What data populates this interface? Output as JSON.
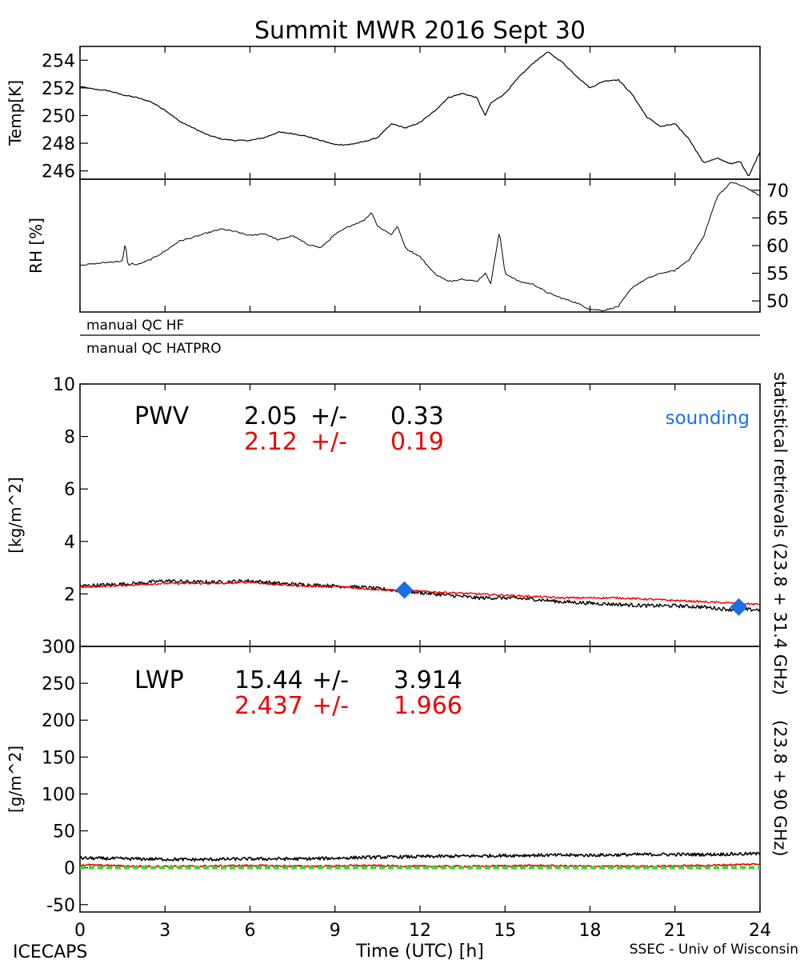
{
  "colors": {
    "primary": "#000000",
    "secondary": "#ee0000",
    "sounding": "#1a6ee6",
    "zero_line": "#33dd33"
  },
  "title": "Summit MWR 2016 Sept 30",
  "x_axis": {
    "label": "Time (UTC) [h]",
    "range": [
      0,
      24
    ],
    "ticks": [
      0,
      3,
      6,
      9,
      12,
      15,
      18,
      21,
      24
    ]
  },
  "qc": {
    "hf": "manual QC HF",
    "hatpro": "manual QC HATPRO"
  },
  "retrieval_labels": {
    "black": "statistical retrievals (23.8 + 31.4 GHz)",
    "red": "(23.8 + 90 GHz)"
  },
  "footer": {
    "left": "ICECAPS",
    "right": "SSEC - Univ of Wisconsin"
  },
  "chart_data": [
    {
      "id": "temp",
      "type": "line",
      "ylabel": "Temp[K]",
      "ylim": [
        245.4,
        255.0
      ],
      "yticks": [
        246,
        248,
        250,
        252,
        254
      ],
      "series": [
        {
          "color": "black",
          "x": [
            0,
            0.5,
            1.0,
            1.5,
            2.0,
            2.5,
            3.0,
            3.5,
            4.0,
            4.5,
            5.0,
            5.5,
            6.0,
            6.5,
            7.0,
            7.5,
            8.0,
            8.5,
            9.0,
            9.5,
            10.0,
            10.5,
            11.0,
            11.5,
            12.0,
            12.5,
            13.0,
            13.5,
            14.0,
            14.3,
            14.5,
            15.0,
            15.5,
            16.0,
            16.5,
            17.0,
            17.5,
            18.0,
            18.5,
            19.0,
            19.5,
            20.0,
            20.5,
            21.0,
            21.5,
            22.0,
            22.5,
            23.0,
            23.3,
            23.6,
            24.0
          ],
          "y": [
            252.1,
            251.9,
            251.8,
            251.5,
            251.3,
            251.0,
            250.4,
            249.6,
            249.1,
            248.6,
            248.3,
            248.2,
            248.2,
            248.4,
            248.8,
            248.7,
            248.5,
            248.2,
            247.9,
            247.9,
            248.1,
            248.4,
            249.4,
            249.1,
            249.5,
            250.3,
            251.3,
            251.6,
            251.3,
            250.0,
            250.9,
            251.6,
            252.8,
            253.8,
            254.6,
            253.9,
            252.9,
            252.0,
            252.5,
            252.6,
            251.5,
            249.9,
            249.2,
            249.4,
            248.3,
            246.6,
            246.9,
            246.5,
            246.7,
            245.6,
            247.4
          ]
        }
      ]
    },
    {
      "id": "rh",
      "type": "line",
      "ylabel": "RH [%]",
      "ylim": [
        48.0,
        72.0
      ],
      "yticks": [
        50,
        55,
        60,
        65,
        70
      ],
      "series": [
        {
          "color": "black",
          "x": [
            0,
            0.5,
            1.0,
            1.5,
            1.6,
            1.7,
            1.8,
            2.0,
            2.5,
            3.0,
            3.5,
            4.0,
            4.5,
            5.0,
            5.5,
            6.0,
            6.5,
            7.0,
            7.5,
            8.0,
            8.5,
            9.0,
            9.5,
            10.0,
            10.3,
            10.5,
            11.0,
            11.2,
            11.5,
            12.0,
            12.5,
            13.0,
            13.5,
            14.0,
            14.3,
            14.5,
            14.8,
            15.0,
            15.5,
            16.0,
            16.5,
            17.0,
            17.5,
            18.0,
            18.5,
            19.0,
            19.5,
            20.0,
            20.5,
            21.0,
            21.5,
            22.0,
            22.5,
            23.0,
            23.5,
            24.0
          ],
          "y": [
            56.5,
            56.7,
            57.0,
            57.2,
            60.5,
            56.2,
            56.8,
            56.5,
            57.5,
            59.0,
            60.8,
            61.5,
            62.3,
            63.0,
            62.5,
            61.8,
            62.2,
            61.0,
            61.8,
            60.3,
            59.6,
            62.0,
            63.5,
            64.5,
            66.0,
            63.5,
            62.0,
            63.5,
            59.5,
            58.0,
            55.0,
            53.5,
            54.0,
            53.5,
            55.0,
            53.2,
            62.5,
            55.0,
            53.5,
            53.0,
            51.5,
            50.5,
            49.7,
            48.5,
            48.3,
            49.0,
            52.5,
            54.0,
            55.0,
            55.5,
            57.5,
            61.5,
            69.0,
            71.5,
            70.5,
            69.0
          ]
        }
      ]
    },
    {
      "id": "pwv",
      "type": "line",
      "label": "PWV",
      "ylabel": "[kg/m^2]",
      "ylim": [
        0,
        10
      ],
      "yticks": [
        0,
        2,
        4,
        6,
        8,
        10
      ],
      "stats": [
        {
          "color": "black",
          "mean": "2.05",
          "pm": "+/-",
          "std": "0.33"
        },
        {
          "color": "red",
          "mean": "2.12",
          "pm": "+/-",
          "std": "0.19"
        }
      ],
      "sounding_label": "sounding",
      "series": [
        {
          "color": "black",
          "x": [
            0,
            1,
            2,
            3,
            4,
            5,
            6,
            7,
            8,
            9,
            10,
            11,
            12,
            13,
            14,
            15,
            16,
            17,
            18,
            19,
            20,
            21,
            22,
            23,
            23.5,
            24
          ],
          "y": [
            2.3,
            2.35,
            2.4,
            2.5,
            2.45,
            2.45,
            2.5,
            2.4,
            2.35,
            2.3,
            2.25,
            2.15,
            2.05,
            1.95,
            1.85,
            1.85,
            1.8,
            1.7,
            1.65,
            1.6,
            1.55,
            1.55,
            1.5,
            1.4,
            1.4,
            1.4
          ]
        },
        {
          "color": "red",
          "x": [
            0,
            1,
            2,
            3,
            4,
            5,
            6,
            7,
            8,
            9,
            10,
            11,
            12,
            13,
            14,
            15,
            16,
            17,
            18,
            19,
            20,
            21,
            22,
            23,
            24
          ],
          "y": [
            2.25,
            2.3,
            2.35,
            2.4,
            2.4,
            2.4,
            2.45,
            2.35,
            2.3,
            2.3,
            2.2,
            2.15,
            2.1,
            2.05,
            2.0,
            1.95,
            1.9,
            1.85,
            1.85,
            1.85,
            1.8,
            1.75,
            1.7,
            1.65,
            1.6
          ]
        }
      ],
      "soundings": [
        {
          "x": 11.45,
          "y": 2.15
        },
        {
          "x": 23.25,
          "y": 1.5
        }
      ]
    },
    {
      "id": "lwp",
      "type": "line",
      "label": "LWP",
      "ylabel": "[g/m^2]",
      "ylim": [
        -60,
        300
      ],
      "yticks": [
        -50,
        0,
        50,
        100,
        150,
        200,
        250,
        300
      ],
      "stats": [
        {
          "color": "black",
          "mean": "15.44",
          "pm": "+/-",
          "std": "3.914"
        },
        {
          "color": "red",
          "mean": "2.437",
          "pm": "+/-",
          "std": "1.966"
        }
      ],
      "series": [
        {
          "color": "black",
          "x": [
            0,
            2,
            4,
            6,
            8,
            10,
            12,
            14,
            16,
            18,
            20,
            22,
            24
          ],
          "y": [
            13,
            12,
            11,
            12,
            12,
            14,
            15,
            16,
            17,
            17,
            18,
            18,
            19
          ]
        },
        {
          "color": "red",
          "x": [
            0,
            2,
            4,
            6,
            8,
            10,
            12,
            14,
            16,
            18,
            20,
            22,
            24
          ],
          "y": [
            4,
            2,
            2,
            3,
            2,
            3,
            2,
            2,
            3,
            2,
            2,
            3,
            5
          ]
        },
        {
          "color": "green",
          "x": [
            0,
            24
          ],
          "y": [
            0,
            0
          ]
        }
      ]
    }
  ]
}
